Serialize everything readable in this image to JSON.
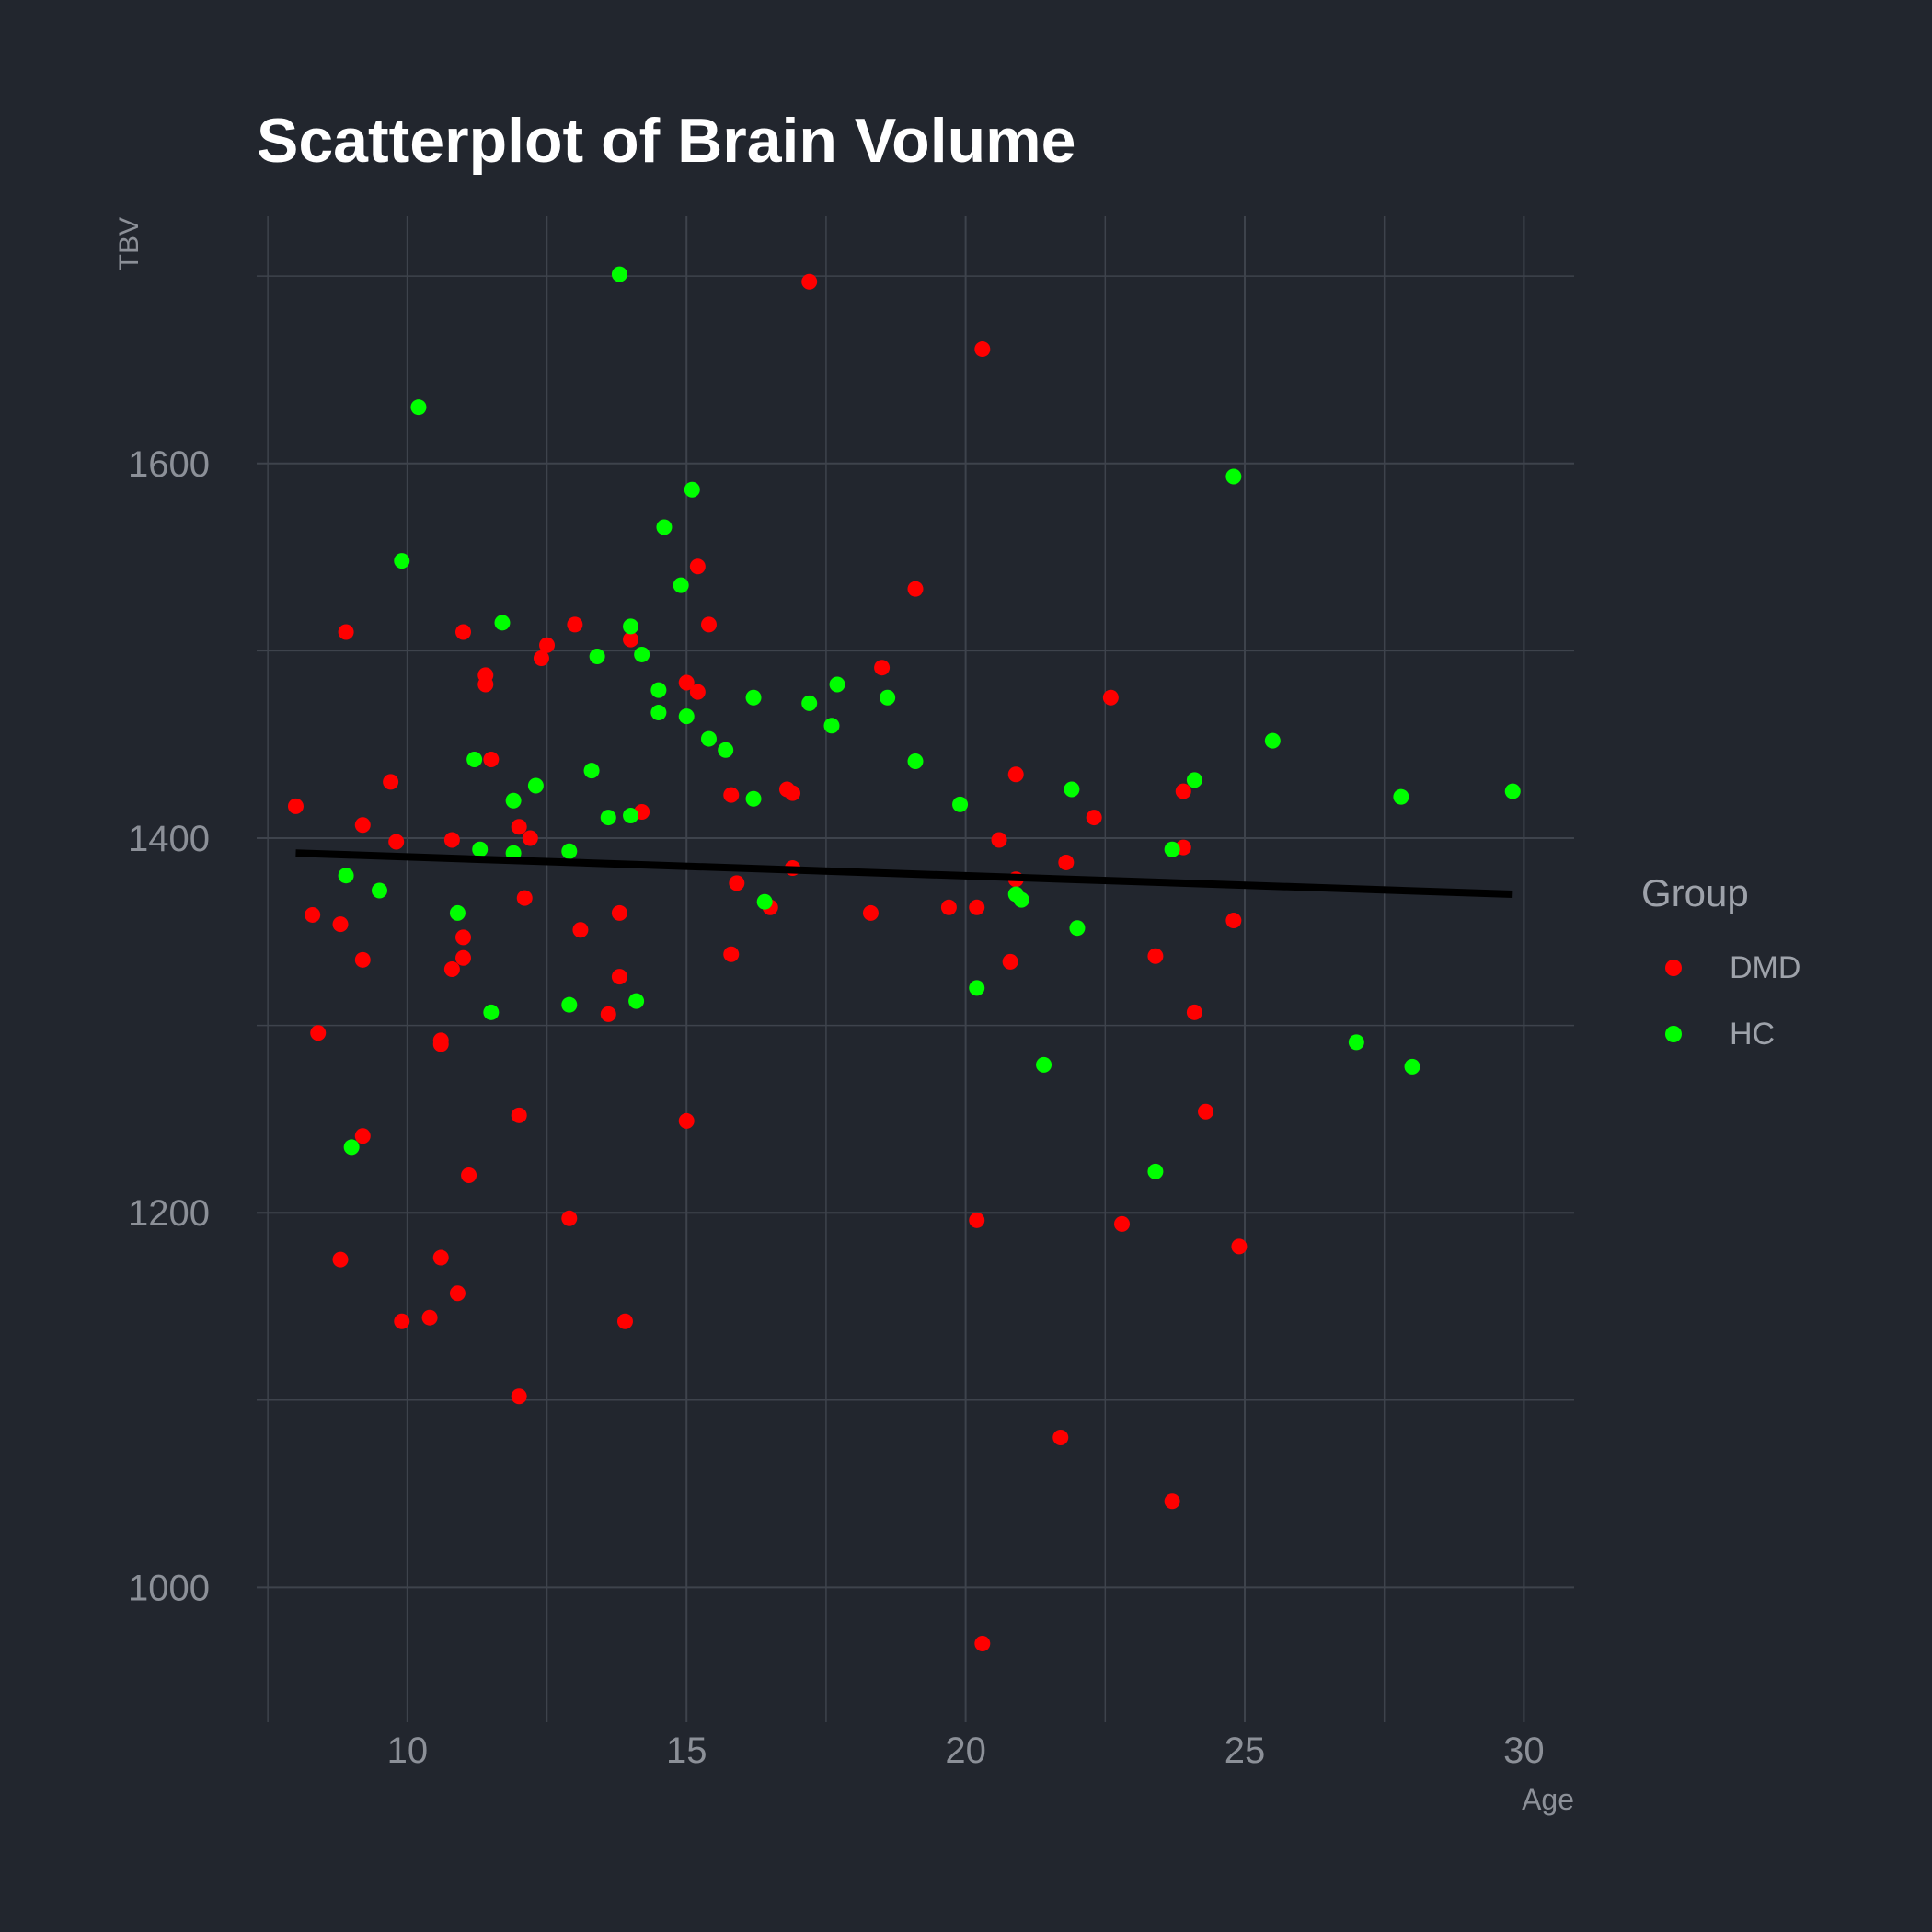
{
  "chart_data": {
    "type": "scatter",
    "title": "Scatterplot of Brain Volume",
    "xlabel": "Age",
    "ylabel": "TBV",
    "xlim": [
      7.3,
      30.9
    ],
    "ylim": [
      928,
      1732
    ],
    "x_ticks": [
      10,
      15,
      20,
      25,
      30
    ],
    "x_minor_ticks": [
      7.5,
      12.5,
      17.5,
      22.5,
      27.5
    ],
    "y_ticks": [
      1000,
      1200,
      1400,
      1600
    ],
    "y_minor_ticks": [
      1100,
      1300,
      1500,
      1700
    ],
    "grid": true,
    "legend": {
      "title": "Group",
      "position": "right"
    },
    "series": [
      {
        "name": "DMD",
        "color": "#ff0000",
        "points": [
          [
            8.0,
            1417
          ],
          [
            8.3,
            1359
          ],
          [
            8.4,
            1296
          ],
          [
            8.8,
            1175
          ],
          [
            8.8,
            1354
          ],
          [
            8.9,
            1510
          ],
          [
            9.2,
            1335
          ],
          [
            9.2,
            1407
          ],
          [
            9.2,
            1241
          ],
          [
            9.7,
            1430
          ],
          [
            9.8,
            1398
          ],
          [
            9.9,
            1142
          ],
          [
            10.4,
            1144
          ],
          [
            10.6,
            1292
          ],
          [
            10.6,
            1176
          ],
          [
            10.6,
            1290
          ],
          [
            10.8,
            1399
          ],
          [
            10.8,
            1330
          ],
          [
            10.9,
            1157
          ],
          [
            11.0,
            1336
          ],
          [
            11.0,
            1347
          ],
          [
            11.0,
            1510
          ],
          [
            11.1,
            1220
          ],
          [
            11.4,
            1487
          ],
          [
            11.4,
            1482
          ],
          [
            11.5,
            1442
          ],
          [
            12.0,
            1252
          ],
          [
            12.0,
            1406
          ],
          [
            12.0,
            1102
          ],
          [
            12.1,
            1368
          ],
          [
            12.2,
            1400
          ],
          [
            12.4,
            1496
          ],
          [
            12.5,
            1503
          ],
          [
            12.9,
            1197
          ],
          [
            13.0,
            1514
          ],
          [
            13.1,
            1351
          ],
          [
            13.6,
            1306
          ],
          [
            13.8,
            1360
          ],
          [
            13.8,
            1326
          ],
          [
            13.9,
            1142
          ],
          [
            14.0,
            1506
          ],
          [
            14.2,
            1414
          ],
          [
            15.0,
            1483
          ],
          [
            15.0,
            1249
          ],
          [
            15.2,
            1478
          ],
          [
            15.2,
            1545
          ],
          [
            15.4,
            1514
          ],
          [
            15.8,
            1423
          ],
          [
            15.8,
            1338
          ],
          [
            15.9,
            1376
          ],
          [
            16.5,
            1363
          ],
          [
            16.8,
            1426
          ],
          [
            16.9,
            1424
          ],
          [
            16.9,
            1384
          ],
          [
            17.2,
            1697
          ],
          [
            18.3,
            1360
          ],
          [
            18.5,
            1491
          ],
          [
            19.1,
            1533
          ],
          [
            19.7,
            1363
          ],
          [
            20.2,
            1363
          ],
          [
            20.2,
            1196
          ],
          [
            20.3,
            1661
          ],
          [
            20.3,
            970
          ],
          [
            20.6,
            1399
          ],
          [
            20.8,
            1334
          ],
          [
            20.9,
            1434
          ],
          [
            20.9,
            1378
          ],
          [
            21.7,
            1080
          ],
          [
            21.8,
            1387
          ],
          [
            22.3,
            1411
          ],
          [
            22.6,
            1475
          ],
          [
            22.8,
            1194
          ],
          [
            23.4,
            1337
          ],
          [
            23.7,
            1046
          ],
          [
            23.9,
            1395
          ],
          [
            23.9,
            1425
          ],
          [
            24.1,
            1307
          ],
          [
            24.3,
            1254
          ],
          [
            24.8,
            1356
          ],
          [
            24.9,
            1182
          ]
        ]
      },
      {
        "name": "HC",
        "color": "#00ff00",
        "points": [
          [
            8.9,
            1380
          ],
          [
            9.0,
            1235
          ],
          [
            9.5,
            1372
          ],
          [
            9.9,
            1548
          ],
          [
            10.2,
            1630
          ],
          [
            10.9,
            1360
          ],
          [
            11.2,
            1442
          ],
          [
            11.3,
            1394
          ],
          [
            11.5,
            1307
          ],
          [
            11.7,
            1515
          ],
          [
            11.9,
            1420
          ],
          [
            11.9,
            1392
          ],
          [
            12.3,
            1428
          ],
          [
            12.9,
            1311
          ],
          [
            12.9,
            1393
          ],
          [
            13.3,
            1436
          ],
          [
            13.4,
            1497
          ],
          [
            13.6,
            1411
          ],
          [
            13.8,
            1701
          ],
          [
            14.0,
            1412
          ],
          [
            14.0,
            1513
          ],
          [
            14.1,
            1313
          ],
          [
            14.2,
            1498
          ],
          [
            14.5,
            1479
          ],
          [
            14.5,
            1467
          ],
          [
            14.6,
            1566
          ],
          [
            14.9,
            1535
          ],
          [
            15.0,
            1465
          ],
          [
            15.1,
            1586
          ],
          [
            15.4,
            1453
          ],
          [
            15.7,
            1447
          ],
          [
            16.2,
            1421
          ],
          [
            16.2,
            1475
          ],
          [
            16.4,
            1366
          ],
          [
            17.2,
            1472
          ],
          [
            17.6,
            1460
          ],
          [
            17.7,
            1482
          ],
          [
            18.6,
            1475
          ],
          [
            19.1,
            1441
          ],
          [
            19.9,
            1418
          ],
          [
            20.2,
            1320
          ],
          [
            20.9,
            1370
          ],
          [
            21.0,
            1367
          ],
          [
            21.4,
            1279
          ],
          [
            21.9,
            1426
          ],
          [
            22.0,
            1352
          ],
          [
            23.4,
            1222
          ],
          [
            23.7,
            1394
          ],
          [
            24.1,
            1431
          ],
          [
            24.8,
            1593
          ],
          [
            25.5,
            1452
          ],
          [
            27.0,
            1291
          ],
          [
            27.8,
            1422
          ],
          [
            28.0,
            1278
          ],
          [
            29.8,
            1425
          ]
        ]
      }
    ],
    "trend_line": {
      "color": "#000000",
      "x": [
        8.0,
        29.8
      ],
      "y": [
        1392,
        1370
      ]
    }
  }
}
